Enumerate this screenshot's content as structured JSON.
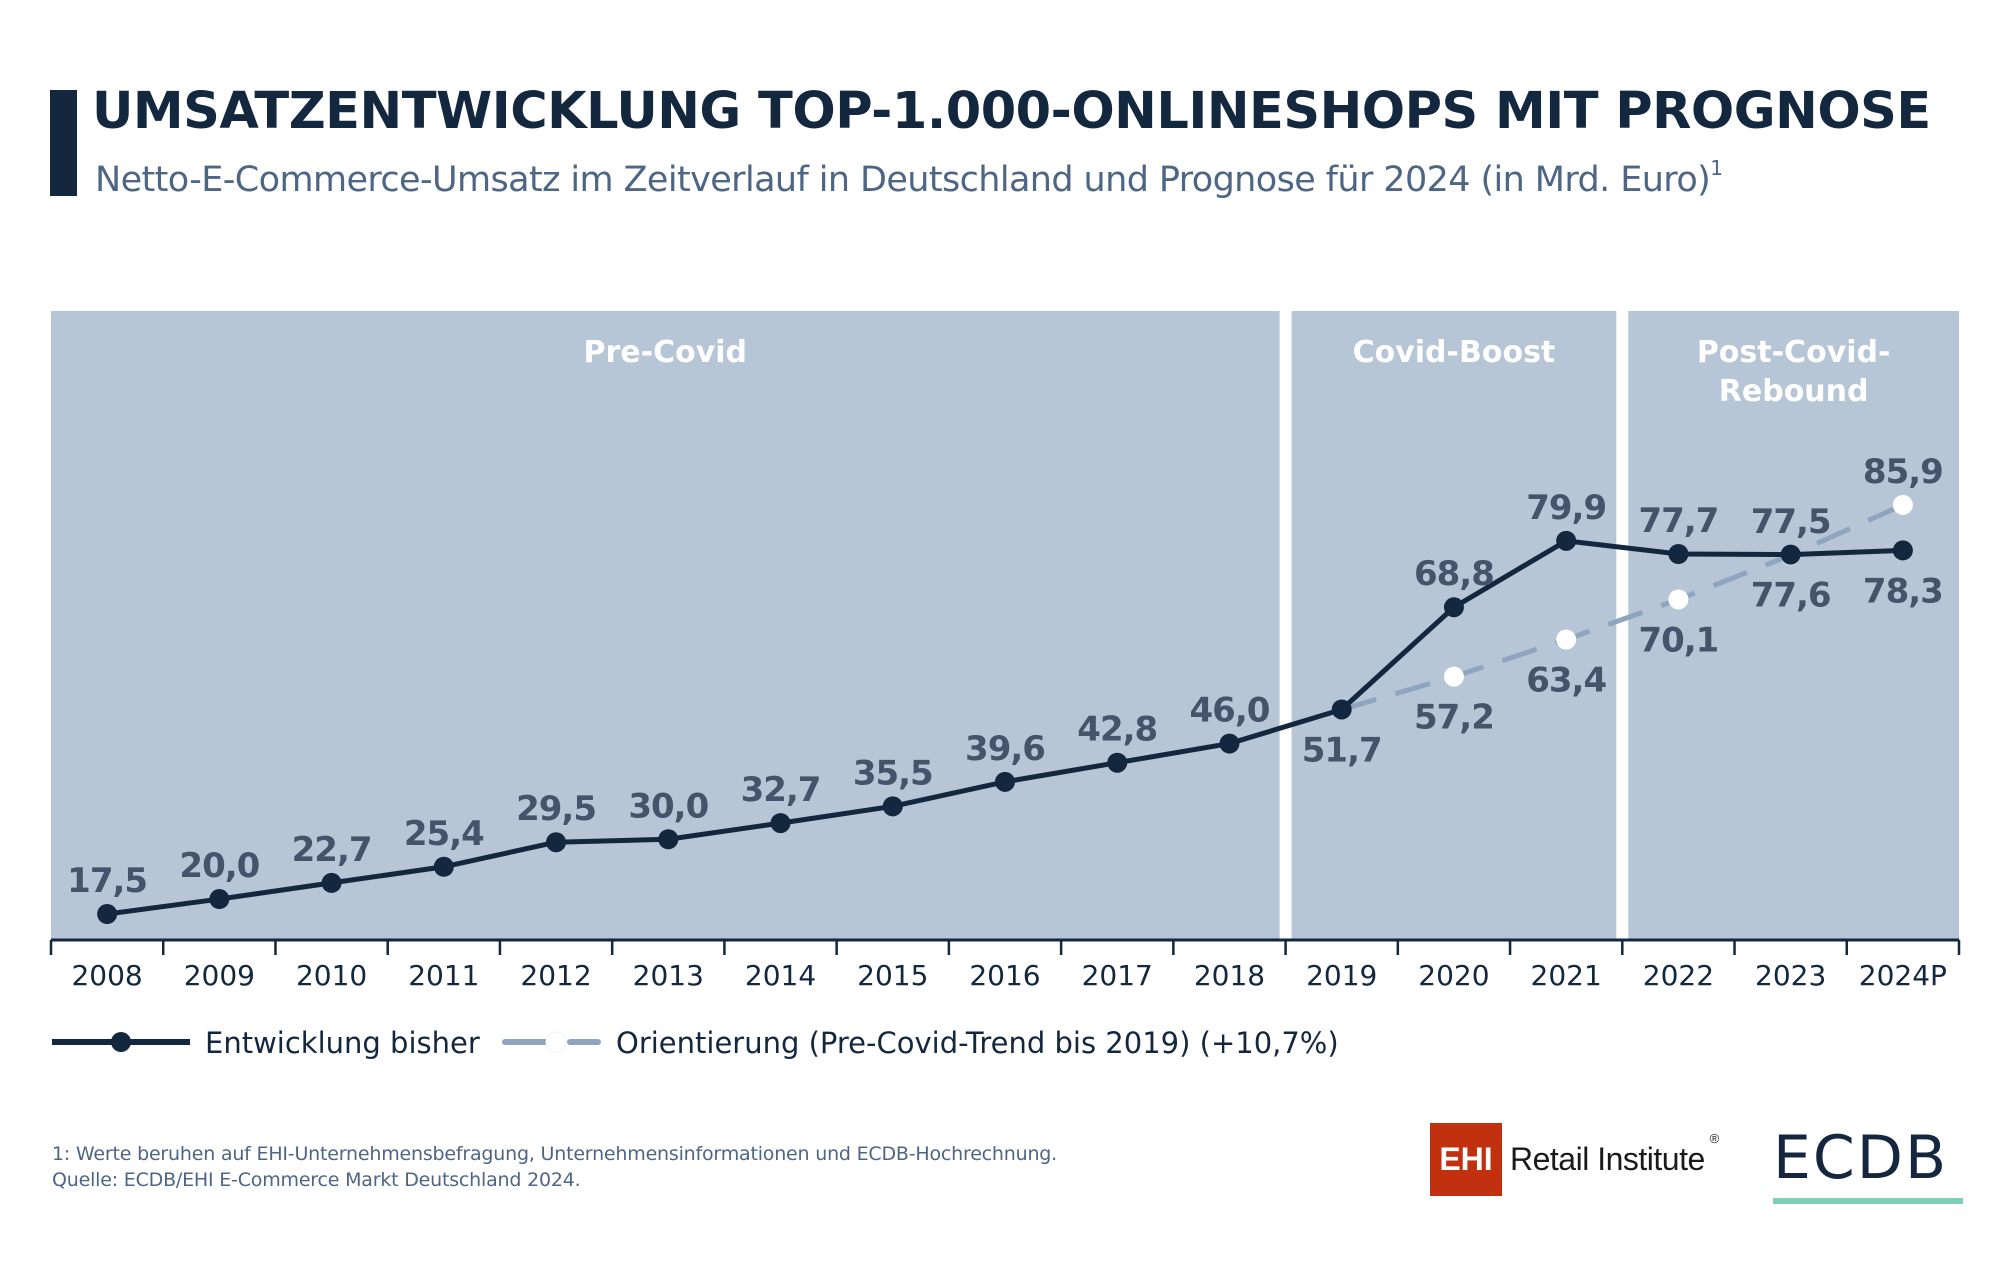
{
  "header": {
    "title": "UMSATZENTWICKLUNG TOP-1.000-ONLINESHOPS MIT PROGNOSE",
    "subtitle": "Netto-E-Commerce-Umsatz im Zeitverlauf in Deutschland und Prognose für 2024 (in Mrd. Euro)",
    "subtitle_footnote_marker": "1"
  },
  "colors": {
    "panel": "#b7c6d6",
    "actual_line": "#13273f",
    "trend_line": "#8ea4bf",
    "label": "#45546b",
    "phase_label": "#ffffff",
    "title": "#13273f",
    "subtitle": "#4d6685",
    "ehi_red": "#c1300f",
    "ecdb_green": "#7dcfb8"
  },
  "chart_data": {
    "type": "line",
    "title": "UMSATZENTWICKLUNG TOP-1.000-ONLINESHOPS MIT PROGNOSE",
    "subtitle": "Netto-E-Commerce-Umsatz im Zeitverlauf in Deutschland und Prognose für 2024 (in Mrd. Euro)",
    "xlabel": "",
    "ylabel": "",
    "unit": "Mrd. Euro",
    "grid": false,
    "y_axis_shown": false,
    "categories": [
      "2008",
      "2009",
      "2010",
      "2011",
      "2012",
      "2013",
      "2014",
      "2015",
      "2016",
      "2017",
      "2018",
      "2019",
      "2020",
      "2021",
      "2022",
      "2023",
      "2024P"
    ],
    "phases": [
      {
        "label_lines": [
          "Pre-Covid"
        ],
        "from": "2008",
        "to": "2018"
      },
      {
        "label_lines": [
          "Covid-Boost"
        ],
        "from": "2019",
        "to": "2021"
      },
      {
        "label_lines": [
          "Post-Covid-",
          "Rebound"
        ],
        "from": "2022",
        "to": "2024P"
      }
    ],
    "series": [
      {
        "name": "Entwicklung bisher",
        "style": "solid",
        "marker": "filled-circle",
        "values": [
          17.5,
          20.0,
          22.7,
          25.4,
          29.5,
          30.0,
          32.7,
          35.5,
          39.6,
          42.8,
          46.0,
          51.7,
          68.8,
          79.9,
          77.7,
          77.6,
          78.3
        ],
        "labels": [
          "17,5",
          "20,0",
          "22,7",
          "25,4",
          "29,5",
          "30,0",
          "32,7",
          "35,5",
          "39,6",
          "42,8",
          "46,0",
          "51,7",
          "68,8",
          "79,9",
          "77,7",
          "77,6",
          "78,3"
        ],
        "label_positions": [
          "above",
          "above",
          "above",
          "above",
          "above",
          "above",
          "above",
          "above",
          "above",
          "above",
          "above",
          "below",
          "above",
          "above",
          "above",
          "below",
          "below"
        ]
      },
      {
        "name": "Orientierung (Pre-Covid-Trend bis 2019) (+10,7%)",
        "style": "dashed",
        "marker": "white-circle",
        "start_category": "2019",
        "values": [
          null,
          null,
          null,
          null,
          null,
          null,
          null,
          null,
          null,
          null,
          null,
          51.7,
          57.2,
          63.4,
          70.1,
          77.5,
          85.9
        ],
        "labels": [
          null,
          null,
          null,
          null,
          null,
          null,
          null,
          null,
          null,
          null,
          null,
          null,
          "57,2",
          "63,4",
          "70,1",
          "77,5",
          "85,9"
        ],
        "label_positions": [
          null,
          null,
          null,
          null,
          null,
          null,
          null,
          null,
          null,
          null,
          null,
          null,
          "below",
          "below",
          "below",
          "above",
          "above"
        ]
      }
    ],
    "legend": [
      {
        "label": "Entwicklung bisher",
        "style": "solid"
      },
      {
        "label": "Orientierung (Pre-Covid-Trend bis 2019) (+10,7%)",
        "style": "dashed"
      }
    ],
    "legend_position": "bottom-left",
    "ylim": [
      10,
      105
    ]
  },
  "footnotes": {
    "line1": "1: Werte beruhen auf EHI-Unternehmensbefragung, Unternehmensinformationen und ECDB-Hochrechnung.",
    "line2": "Quelle: ECDB/EHI E-Commerce Markt Deutschland 2024."
  },
  "logos": {
    "ehi_mark": "EHI",
    "ehi_text": "Retail Institute",
    "ehi_reg": "®",
    "ecdb": "ECDB"
  }
}
